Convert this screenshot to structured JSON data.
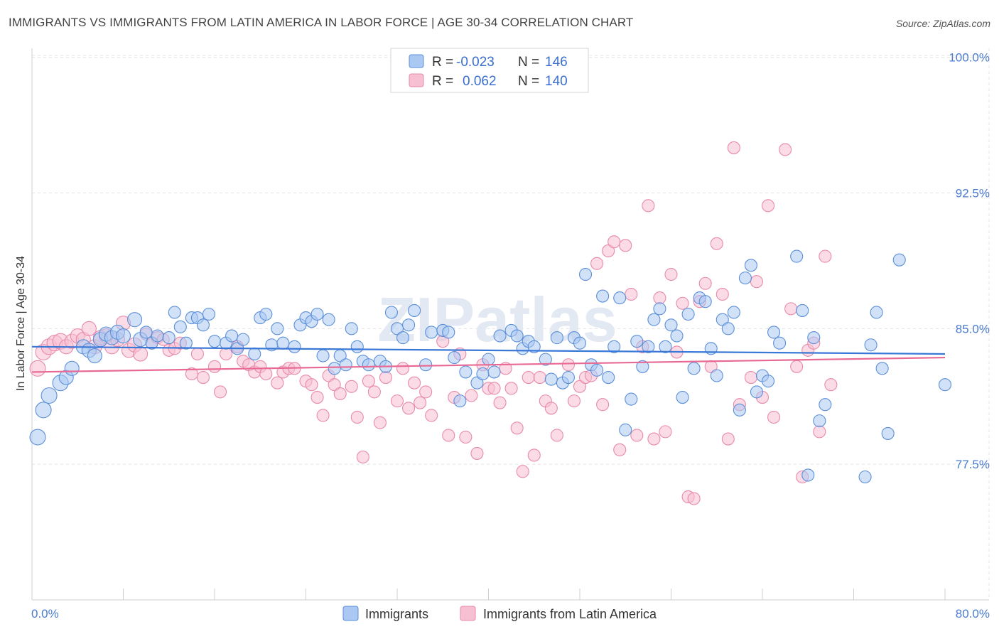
{
  "title": "IMMIGRANTS VS IMMIGRANTS FROM LATIN AMERICA IN LABOR FORCE | AGE 30-34 CORRELATION CHART",
  "source": "Source: ZipAtlas.com",
  "colors": {
    "blue_fill": "#aac8f2",
    "blue_stroke": "#5b8fd9",
    "blue_line": "#3a78d8",
    "pink_fill": "#f7c0d2",
    "pink_stroke": "#e88aaa",
    "pink_line": "#e86a94",
    "tick_label": "#4a7bd0"
  },
  "chart_data": {
    "type": "scatter",
    "xlabel": "",
    "ylabel": "In Labor Force | Age 30-34",
    "xlim": [
      0,
      80
    ],
    "ylim": [
      70,
      100.5
    ],
    "x_tick_labels": [
      "0.0%",
      "80.0%"
    ],
    "y_ticks": [
      77.5,
      85.0,
      92.5,
      100.0
    ],
    "y_tick_labels": [
      "77.5%",
      "85.0%",
      "92.5%",
      "100.0%"
    ],
    "grid": true,
    "legend": {
      "position": "top-center",
      "entries": [
        {
          "r_label": "R =",
          "r_value": "-0.023",
          "n_label": "N =",
          "n_value": "146"
        },
        {
          "r_label": "R =",
          "r_value": "0.062",
          "n_label": "N =",
          "n_value": "140"
        }
      ]
    },
    "series": [
      {
        "name": "Immigrants",
        "trend": {
          "x": [
            0,
            80
          ],
          "y": [
            84.0,
            83.6
          ]
        },
        "points": [
          [
            0.5,
            79.0
          ],
          [
            1.0,
            80.5
          ],
          [
            1.5,
            81.3
          ],
          [
            2.5,
            82.0
          ],
          [
            3.0,
            82.3
          ],
          [
            3.5,
            82.8
          ],
          [
            4.5,
            84.0
          ],
          [
            5.0,
            83.8
          ],
          [
            5.5,
            83.5
          ],
          [
            6.0,
            84.4
          ],
          [
            6.5,
            84.7
          ],
          [
            7.0,
            84.5
          ],
          [
            7.5,
            84.8
          ],
          [
            8.0,
            84.6
          ],
          [
            9.0,
            85.5
          ],
          [
            9.5,
            84.4
          ],
          [
            10.0,
            84.8
          ],
          [
            10.5,
            84.2
          ],
          [
            11.0,
            84.6
          ],
          [
            12.0,
            84.5
          ],
          [
            12.5,
            85.9
          ],
          [
            13.0,
            85.1
          ],
          [
            13.5,
            84.2
          ],
          [
            14.0,
            85.6
          ],
          [
            14.5,
            85.6
          ],
          [
            15.0,
            85.2
          ],
          [
            15.5,
            85.8
          ],
          [
            16.0,
            84.3
          ],
          [
            17.0,
            84.2
          ],
          [
            17.5,
            84.6
          ],
          [
            18.0,
            83.9
          ],
          [
            18.5,
            84.4
          ],
          [
            19.5,
            83.6
          ],
          [
            20.0,
            85.6
          ],
          [
            20.5,
            85.8
          ],
          [
            21.0,
            84.1
          ],
          [
            21.5,
            85.0
          ],
          [
            22.0,
            84.2
          ],
          [
            23.0,
            84.0
          ],
          [
            23.5,
            85.2
          ],
          [
            24.0,
            85.6
          ],
          [
            24.5,
            85.4
          ],
          [
            25.0,
            85.8
          ],
          [
            25.5,
            83.5
          ],
          [
            26.0,
            85.5
          ],
          [
            26.5,
            82.8
          ],
          [
            27.0,
            83.5
          ],
          [
            27.5,
            83.0
          ],
          [
            28.0,
            85.0
          ],
          [
            28.5,
            84.0
          ],
          [
            29.0,
            83.2
          ],
          [
            29.5,
            83.0
          ],
          [
            30.5,
            83.2
          ],
          [
            31.0,
            82.9
          ],
          [
            31.5,
            85.9
          ],
          [
            32.0,
            85.0
          ],
          [
            32.5,
            84.5
          ],
          [
            33.0,
            85.2
          ],
          [
            33.5,
            86.0
          ],
          [
            34.5,
            83.0
          ],
          [
            35.0,
            84.8
          ],
          [
            36.0,
            84.9
          ],
          [
            36.5,
            84.8
          ],
          [
            37.0,
            83.4
          ],
          [
            37.5,
            81.0
          ],
          [
            38.0,
            82.6
          ],
          [
            39.0,
            82.0
          ],
          [
            39.5,
            82.5
          ],
          [
            40.0,
            83.3
          ],
          [
            40.5,
            82.6
          ],
          [
            41.0,
            84.6
          ],
          [
            42.0,
            84.9
          ],
          [
            42.5,
            84.6
          ],
          [
            43.0,
            83.9
          ],
          [
            43.5,
            84.3
          ],
          [
            44.0,
            84.0
          ],
          [
            45.0,
            83.3
          ],
          [
            45.5,
            82.2
          ],
          [
            46.0,
            84.5
          ],
          [
            46.5,
            82.0
          ],
          [
            47.0,
            82.3
          ],
          [
            47.5,
            84.5
          ],
          [
            48.0,
            84.2
          ],
          [
            48.5,
            88.0
          ],
          [
            49.0,
            83.0
          ],
          [
            49.5,
            82.7
          ],
          [
            50.0,
            86.8
          ],
          [
            50.5,
            82.3
          ],
          [
            51.0,
            84.0
          ],
          [
            51.5,
            86.7
          ],
          [
            52.0,
            79.4
          ],
          [
            52.5,
            81.1
          ],
          [
            53.0,
            84.3
          ],
          [
            53.5,
            82.9
          ],
          [
            54.0,
            84.0
          ],
          [
            54.5,
            85.5
          ],
          [
            55.0,
            86.1
          ],
          [
            55.5,
            84.0
          ],
          [
            56.0,
            85.2
          ],
          [
            56.5,
            84.6
          ],
          [
            57.0,
            81.2
          ],
          [
            57.5,
            85.8
          ],
          [
            58.0,
            82.8
          ],
          [
            58.5,
            86.7
          ],
          [
            59.0,
            86.5
          ],
          [
            59.5,
            83.9
          ],
          [
            60.0,
            82.4
          ],
          [
            60.5,
            85.5
          ],
          [
            61.0,
            85.0
          ],
          [
            61.5,
            85.9
          ],
          [
            62.0,
            80.5
          ],
          [
            62.5,
            87.8
          ],
          [
            63.0,
            88.5
          ],
          [
            63.5,
            81.5
          ],
          [
            64.0,
            82.4
          ],
          [
            64.5,
            82.1
          ],
          [
            65.0,
            84.8
          ],
          [
            65.5,
            84.2
          ],
          [
            67.0,
            89.0
          ],
          [
            67.5,
            86.0
          ],
          [
            68.0,
            76.9
          ],
          [
            68.5,
            84.5
          ],
          [
            69.0,
            79.9
          ],
          [
            69.5,
            80.8
          ],
          [
            73.0,
            76.8
          ],
          [
            73.5,
            84.1
          ],
          [
            74.0,
            85.9
          ],
          [
            74.5,
            82.8
          ],
          [
            75.0,
            79.2
          ],
          [
            76.0,
            88.8
          ],
          [
            80.0,
            81.9
          ]
        ]
      },
      {
        "name": "Immigrants from Latin America",
        "trend": {
          "x": [
            0,
            80
          ],
          "y": [
            82.6,
            83.4
          ]
        },
        "points": [
          [
            0.5,
            82.8
          ],
          [
            1.0,
            83.7
          ],
          [
            1.5,
            84.0
          ],
          [
            2.0,
            84.2
          ],
          [
            2.5,
            84.3
          ],
          [
            3.0,
            84.0
          ],
          [
            3.5,
            84.3
          ],
          [
            4.0,
            84.6
          ],
          [
            4.5,
            84.4
          ],
          [
            5.0,
            85.0
          ],
          [
            5.5,
            84.0
          ],
          [
            6.0,
            84.5
          ],
          [
            6.5,
            84.6
          ],
          [
            7.0,
            84.0
          ],
          [
            7.5,
            84.4
          ],
          [
            8.0,
            85.3
          ],
          [
            8.5,
            83.8
          ],
          [
            9.0,
            84.1
          ],
          [
            9.5,
            83.6
          ],
          [
            10.0,
            84.7
          ],
          [
            10.5,
            84.2
          ],
          [
            11.0,
            84.5
          ],
          [
            11.5,
            84.4
          ],
          [
            12.0,
            83.8
          ],
          [
            12.5,
            83.9
          ],
          [
            13.0,
            84.2
          ],
          [
            14.0,
            82.5
          ],
          [
            14.5,
            83.6
          ],
          [
            15.0,
            82.3
          ],
          [
            16.0,
            82.9
          ],
          [
            16.5,
            81.5
          ],
          [
            17.0,
            83.6
          ],
          [
            18.0,
            84.0
          ],
          [
            18.5,
            83.2
          ],
          [
            19.0,
            83.0
          ],
          [
            19.5,
            82.6
          ],
          [
            20.0,
            82.9
          ],
          [
            20.5,
            82.5
          ],
          [
            21.5,
            82.0
          ],
          [
            22.0,
            82.6
          ],
          [
            22.5,
            82.8
          ],
          [
            23.0,
            82.8
          ],
          [
            24.0,
            82.1
          ],
          [
            24.5,
            81.9
          ],
          [
            25.0,
            81.2
          ],
          [
            25.5,
            80.2
          ],
          [
            26.0,
            82.4
          ],
          [
            26.5,
            81.9
          ],
          [
            27.0,
            81.4
          ],
          [
            28.0,
            81.8
          ],
          [
            28.5,
            80.1
          ],
          [
            29.0,
            77.9
          ],
          [
            29.5,
            82.1
          ],
          [
            30.0,
            81.5
          ],
          [
            30.5,
            79.8
          ],
          [
            31.0,
            82.3
          ],
          [
            32.0,
            81.0
          ],
          [
            32.5,
            82.8
          ],
          [
            33.0,
            80.6
          ],
          [
            33.5,
            82.0
          ],
          [
            34.0,
            80.9
          ],
          [
            34.5,
            81.5
          ],
          [
            35.0,
            80.2
          ],
          [
            36.0,
            84.3
          ],
          [
            36.5,
            79.1
          ],
          [
            37.0,
            81.2
          ],
          [
            37.5,
            83.6
          ],
          [
            38.0,
            79.0
          ],
          [
            38.5,
            81.3
          ],
          [
            39.0,
            78.1
          ],
          [
            39.5,
            83.0
          ],
          [
            40.0,
            81.7
          ],
          [
            40.5,
            81.7
          ],
          [
            41.0,
            80.9
          ],
          [
            41.5,
            82.8
          ],
          [
            42.0,
            81.7
          ],
          [
            42.5,
            79.5
          ],
          [
            43.0,
            77.1
          ],
          [
            43.5,
            82.3
          ],
          [
            44.0,
            78.0
          ],
          [
            44.5,
            82.3
          ],
          [
            45.0,
            81.0
          ],
          [
            45.5,
            80.6
          ],
          [
            46.0,
            79.1
          ],
          [
            47.0,
            83.0
          ],
          [
            47.5,
            81.0
          ],
          [
            48.0,
            81.8
          ],
          [
            48.5,
            82.3
          ],
          [
            49.0,
            82.4
          ],
          [
            49.5,
            88.6
          ],
          [
            50.0,
            80.8
          ],
          [
            50.5,
            89.3
          ],
          [
            51.0,
            89.8
          ],
          [
            51.5,
            78.3
          ],
          [
            52.0,
            89.6
          ],
          [
            52.5,
            86.9
          ],
          [
            53.0,
            79.1
          ],
          [
            53.5,
            84.0
          ],
          [
            54.0,
            91.8
          ],
          [
            54.5,
            78.9
          ],
          [
            55.0,
            86.7
          ],
          [
            55.5,
            79.3
          ],
          [
            56.0,
            88.0
          ],
          [
            56.5,
            83.7
          ],
          [
            57.0,
            86.4
          ],
          [
            57.5,
            75.7
          ],
          [
            58.0,
            75.6
          ],
          [
            58.5,
            86.5
          ],
          [
            59.0,
            87.5
          ],
          [
            59.5,
            82.9
          ],
          [
            60.0,
            89.7
          ],
          [
            60.5,
            86.9
          ],
          [
            61.0,
            78.9
          ],
          [
            61.5,
            95.0
          ],
          [
            62.0,
            80.8
          ],
          [
            63.0,
            82.3
          ],
          [
            63.5,
            87.6
          ],
          [
            64.0,
            81.2
          ],
          [
            64.5,
            91.8
          ],
          [
            65.0,
            80.1
          ],
          [
            66.0,
            94.9
          ],
          [
            66.5,
            86.1
          ],
          [
            67.0,
            82.9
          ],
          [
            67.5,
            76.8
          ],
          [
            68.0,
            83.8
          ],
          [
            68.5,
            84.2
          ],
          [
            69.0,
            79.3
          ],
          [
            69.5,
            89.0
          ],
          [
            70.0,
            81.9
          ]
        ]
      }
    ]
  },
  "bottom_legend": [
    {
      "label": "Immigrants"
    },
    {
      "label": "Immigrants from Latin America"
    }
  ]
}
